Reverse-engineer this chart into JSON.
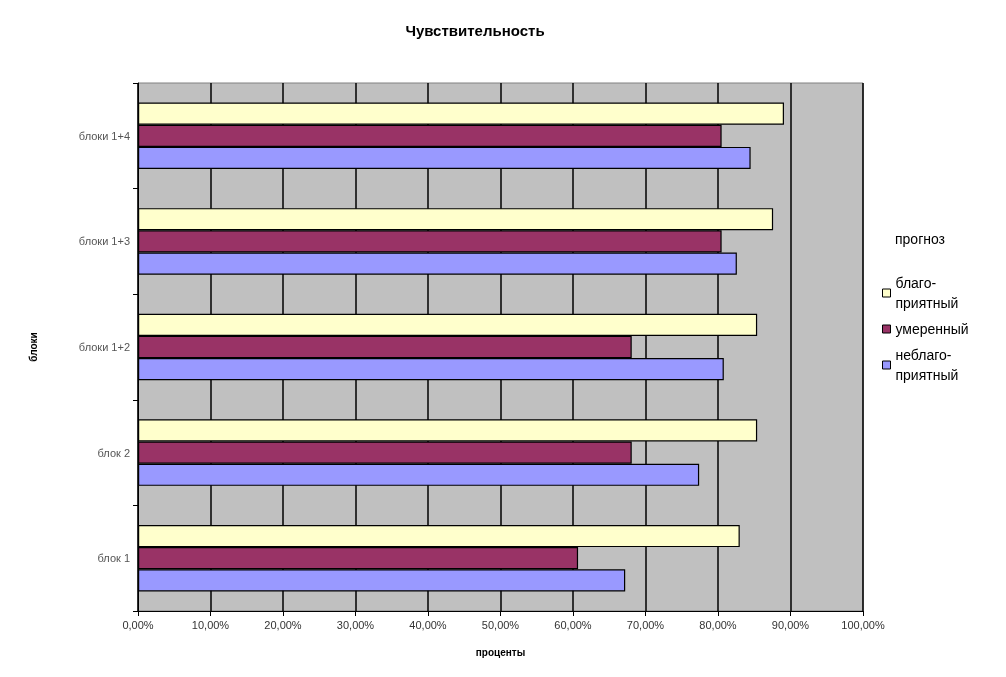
{
  "chart_data": {
    "type": "bar",
    "orientation": "horizontal",
    "title": "Чувствительность",
    "xlabel": "проценты",
    "ylabel": "блоки",
    "legend_title": "прогноз",
    "categories": [
      "блоки 1+4",
      "блоки 1+3",
      "блоки 1+2",
      "блок 2",
      "блок 1"
    ],
    "series": [
      {
        "name": "благо-приятный",
        "color": "#ffffcc",
        "values": [
          89.1,
          87.6,
          85.4,
          85.4,
          83.0
        ]
      },
      {
        "name": "умеренный",
        "color": "#993366",
        "values": [
          80.5,
          80.5,
          68.1,
          68.1,
          60.7
        ]
      },
      {
        "name": "неблаго-приятный",
        "color": "#9999ff",
        "values": [
          84.5,
          82.6,
          80.8,
          77.4,
          67.2
        ]
      }
    ],
    "xlim": [
      0,
      100
    ],
    "xticks": [
      {
        "value": 0,
        "label": "0,00%"
      },
      {
        "value": 10,
        "label": "10,00%"
      },
      {
        "value": 20,
        "label": "20,00%"
      },
      {
        "value": 30,
        "label": "30,00%"
      },
      {
        "value": 40,
        "label": "40,00%"
      },
      {
        "value": 50,
        "label": "50,00%"
      },
      {
        "value": 60,
        "label": "60,00%"
      },
      {
        "value": 70,
        "label": "70,00%"
      },
      {
        "value": 80,
        "label": "80,00%"
      },
      {
        "value": 90,
        "label": "90,00%"
      },
      {
        "value": 100,
        "label": "100,00%"
      }
    ],
    "grid": "x",
    "legend": "right"
  }
}
